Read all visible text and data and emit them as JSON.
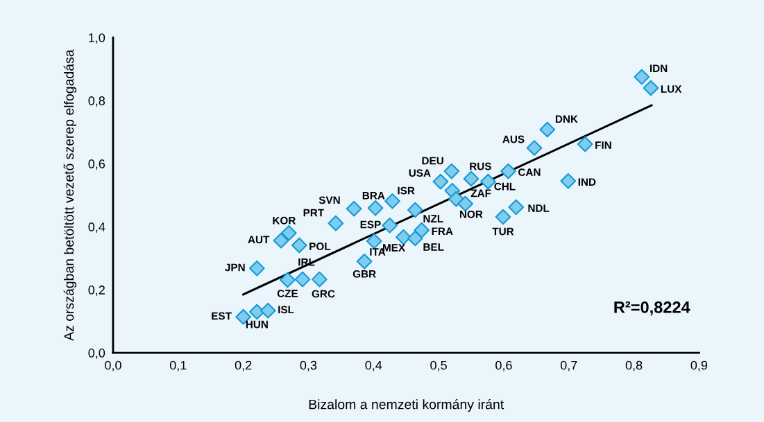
{
  "chart_data": {
    "type": "scatter",
    "xlabel": "Bizalom a nemzeti kormány iránt",
    "ylabel": "Az országban betöltött vezető szerep elfogadása",
    "xlim": [
      0,
      0.9
    ],
    "ylim": [
      0,
      1.0
    ],
    "xticks": [
      {
        "value": 0,
        "label": "0,0"
      },
      {
        "value": 0.1,
        "label": "0,1"
      },
      {
        "value": 0.2,
        "label": "0,2"
      },
      {
        "value": 0.3,
        "label": "0,3"
      },
      {
        "value": 0.4,
        "label": "0,4"
      },
      {
        "value": 0.5,
        "label": "0,5"
      },
      {
        "value": 0.6,
        "label": "0,6"
      },
      {
        "value": 0.7,
        "label": "0,7"
      },
      {
        "value": 0.8,
        "label": "0,8"
      },
      {
        "value": 0.9,
        "label": "0,9"
      }
    ],
    "yticks": [
      {
        "value": 0,
        "label": "0,0"
      },
      {
        "value": 0.2,
        "label": "0,2"
      },
      {
        "value": 0.4,
        "label": "0,4"
      },
      {
        "value": 0.6,
        "label": "0,6"
      },
      {
        "value": 0.8,
        "label": "0,8"
      },
      {
        "value": 1.0,
        "label": "1,0"
      }
    ],
    "grid": false,
    "legend": false,
    "series": [
      {
        "marker": "diamond",
        "color": "#7fcdee",
        "x": [
          0.2,
          0.221,
          0.238,
          0.221,
          0.268,
          0.291,
          0.317,
          0.258,
          0.27,
          0.286,
          0.342,
          0.37,
          0.403,
          0.429,
          0.425,
          0.401,
          0.386,
          0.446,
          0.464,
          0.474,
          0.464,
          0.503,
          0.52,
          0.55,
          0.521,
          0.527,
          0.541,
          0.576,
          0.607,
          0.647,
          0.667,
          0.725,
          0.699,
          0.619,
          0.599,
          0.812,
          0.826
        ],
        "values": [
          0.114,
          0.13,
          0.134,
          0.268,
          0.231,
          0.233,
          0.233,
          0.356,
          0.38,
          0.341,
          0.411,
          0.457,
          0.459,
          0.481,
          0.404,
          0.354,
          0.29,
          0.367,
          0.363,
          0.389,
          0.453,
          0.543,
          0.576,
          0.552,
          0.514,
          0.488,
          0.473,
          0.543,
          0.576,
          0.65,
          0.708,
          0.662,
          0.545,
          0.462,
          0.431,
          0.875,
          0.84
        ]
      },
      {
        "type": "line",
        "marker": "none",
        "color": "#000000",
        "x": [
          0.2,
          0.827
        ],
        "values": [
          0.185,
          0.785
        ]
      }
    ],
    "annotations": [
      {
        "text": "EST",
        "x": 0.2,
        "y": 0.114
      },
      {
        "text": "HUN",
        "x": 0.221,
        "y": 0.13
      },
      {
        "text": "ISL",
        "x": 0.238,
        "y": 0.134
      },
      {
        "text": "JPN",
        "x": 0.221,
        "y": 0.268
      },
      {
        "text": "CZE",
        "x": 0.268,
        "y": 0.231
      },
      {
        "text": "IRL",
        "x": 0.291,
        "y": 0.233
      },
      {
        "text": "GRC",
        "x": 0.317,
        "y": 0.233
      },
      {
        "text": "AUT",
        "x": 0.258,
        "y": 0.356
      },
      {
        "text": "KOR",
        "x": 0.27,
        "y": 0.38
      },
      {
        "text": "POL",
        "x": 0.286,
        "y": 0.341
      },
      {
        "text": "PRT",
        "x": 0.342,
        "y": 0.411
      },
      {
        "text": "SVN",
        "x": 0.37,
        "y": 0.457
      },
      {
        "text": "BRA",
        "x": 0.403,
        "y": 0.459
      },
      {
        "text": "ISR",
        "x": 0.429,
        "y": 0.481
      },
      {
        "text": "ESP",
        "x": 0.425,
        "y": 0.404
      },
      {
        "text": "ITA",
        "x": 0.401,
        "y": 0.354
      },
      {
        "text": "GBR",
        "x": 0.386,
        "y": 0.29
      },
      {
        "text": "MEX",
        "x": 0.446,
        "y": 0.367
      },
      {
        "text": "BEL",
        "x": 0.464,
        "y": 0.363
      },
      {
        "text": "FRA",
        "x": 0.474,
        "y": 0.389
      },
      {
        "text": "NZL",
        "x": 0.464,
        "y": 0.453
      },
      {
        "text": "USA",
        "x": 0.503,
        "y": 0.543
      },
      {
        "text": "DEU",
        "x": 0.52,
        "y": 0.576
      },
      {
        "text": "RUS",
        "x": 0.55,
        "y": 0.552
      },
      {
        "text": "ZAF",
        "x": 0.527,
        "y": 0.488
      },
      {
        "text": "NOR",
        "x": 0.541,
        "y": 0.473
      },
      {
        "text": "CHL",
        "x": 0.576,
        "y": 0.543
      },
      {
        "text": "CAN",
        "x": 0.607,
        "y": 0.576
      },
      {
        "text": "AUS",
        "x": 0.647,
        "y": 0.65
      },
      {
        "text": "DNK",
        "x": 0.667,
        "y": 0.708
      },
      {
        "text": "FIN",
        "x": 0.725,
        "y": 0.662
      },
      {
        "text": "IND",
        "x": 0.699,
        "y": 0.545
      },
      {
        "text": "NDL",
        "x": 0.619,
        "y": 0.462
      },
      {
        "text": "TUR",
        "x": 0.599,
        "y": 0.431
      },
      {
        "text": "IDN",
        "x": 0.812,
        "y": 0.875
      },
      {
        "text": "LUX",
        "x": 0.826,
        "y": 0.84
      },
      "R²=0,8224"
    ]
  }
}
